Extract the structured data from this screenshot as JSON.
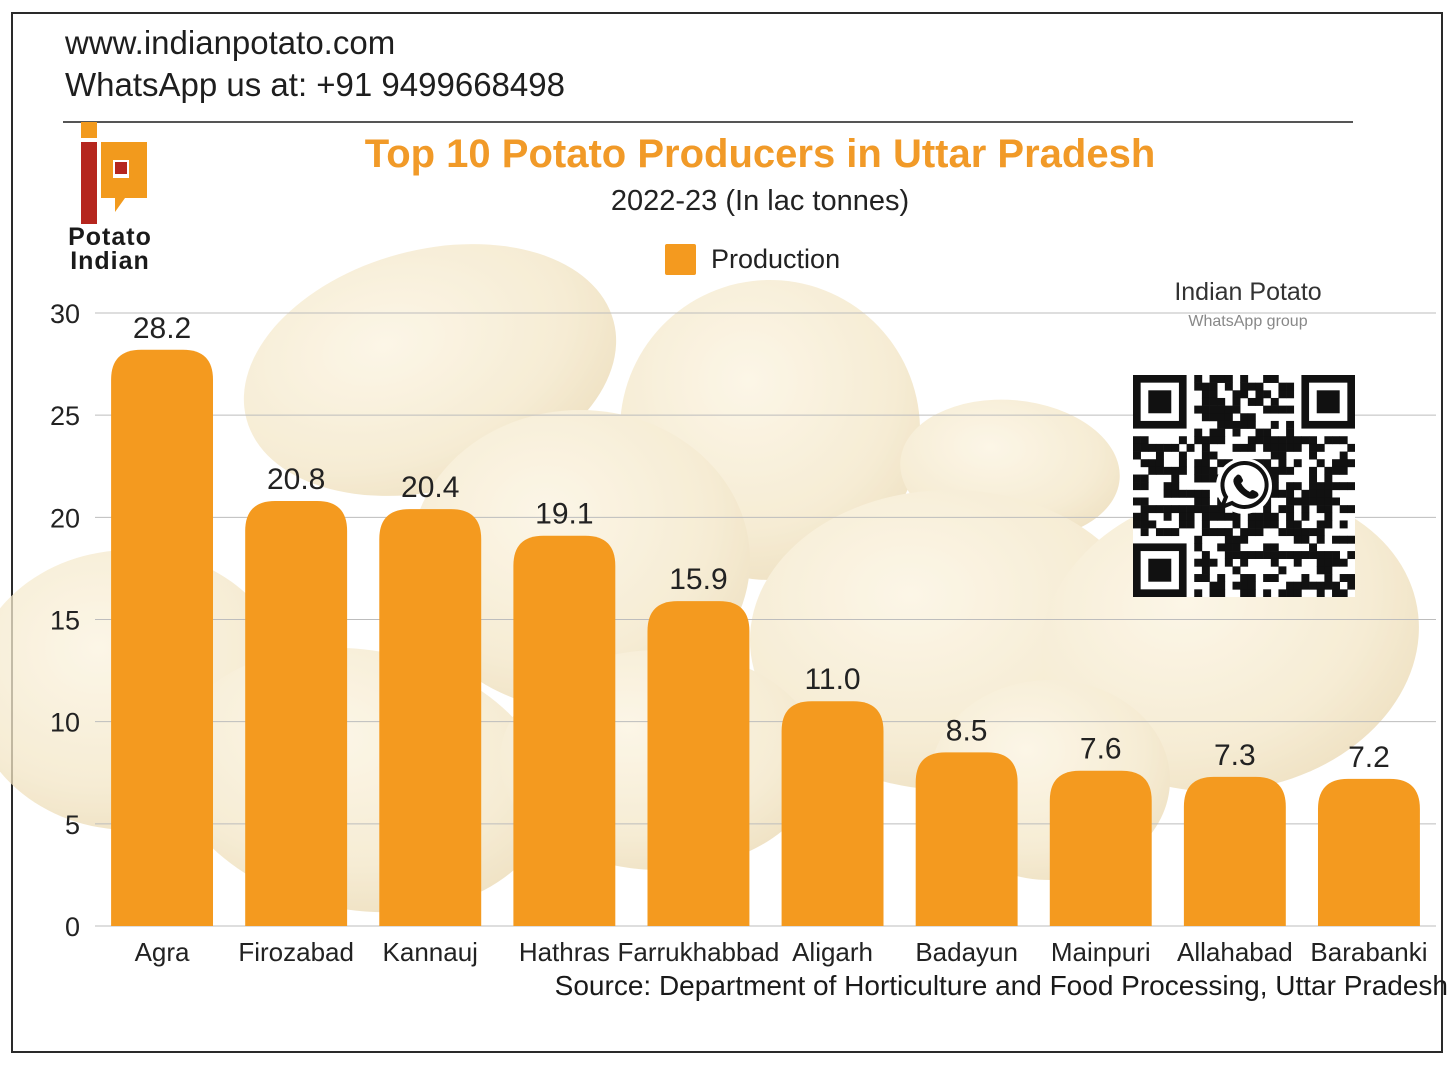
{
  "header": {
    "website": "www.indianpotato.com",
    "whatsapp": "WhatsApp us at: +91 9499668498"
  },
  "logo": {
    "text_line1": "Potato",
    "text_line2": "Indian",
    "colors": {
      "orange": "#f29a1d",
      "red": "#b5261e"
    }
  },
  "legend": {
    "label": "Production",
    "color": "#f49a1f"
  },
  "qr": {
    "title": "Indian Potato",
    "subtitle": "WhatsApp group",
    "icon": "whatsapp-icon"
  },
  "source": "Source: Department of Horticulture and Food Processing, Uttar Pradesh",
  "chart_data": {
    "type": "bar",
    "title": "Top 10 Potato Producers in Uttar Pradesh",
    "subtitle": "2022-23 (In lac tonnes)",
    "categories": [
      "Agra",
      "Firozabad",
      "Kannauj",
      "Hathras",
      "Farrukhabbad",
      "Aligarh",
      "Badayun",
      "Mainpuri",
      "Allahabad",
      "Barabanki"
    ],
    "series": [
      {
        "name": "Production",
        "values": [
          28.2,
          20.8,
          20.4,
          19.1,
          15.9,
          11.0,
          8.5,
          7.6,
          7.3,
          7.2
        ],
        "labels": [
          "28.2",
          "20.8",
          "20.4",
          "19.1",
          "15.9",
          "11.0",
          "8.5",
          "7.6",
          "7.3",
          "7.2"
        ]
      }
    ],
    "yticks": [
      "0",
      "5",
      "10",
      "15",
      "20",
      "25",
      "30"
    ],
    "ylim": [
      0,
      30
    ],
    "grid": true,
    "bar_color": "#f49a1f",
    "background": "potato photo (faded)"
  }
}
